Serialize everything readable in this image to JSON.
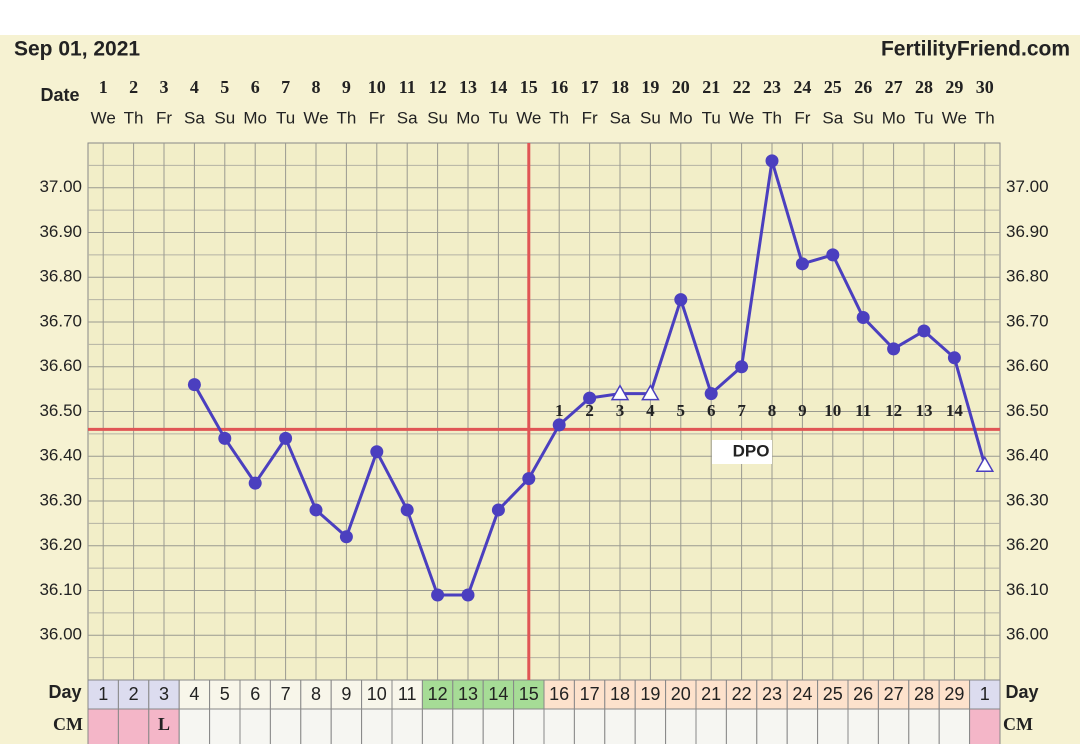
{
  "chart_data": {
    "type": "line",
    "title": "Sep 01, 2021",
    "site": "FertilityFriend.com",
    "x_label": "Date",
    "categories": [
      "1",
      "2",
      "3",
      "4",
      "5",
      "6",
      "7",
      "8",
      "9",
      "10",
      "11",
      "12",
      "13",
      "14",
      "15",
      "16",
      "17",
      "18",
      "19",
      "20",
      "21",
      "22",
      "23",
      "24",
      "25",
      "26",
      "27",
      "28",
      "29",
      "30"
    ],
    "weekdays": [
      "We",
      "Th",
      "Fr",
      "Sa",
      "Su",
      "Mo",
      "Tu",
      "We",
      "Th",
      "Fr",
      "Sa",
      "Su",
      "Mo",
      "Tu",
      "We",
      "Th",
      "Fr",
      "Sa",
      "Su",
      "Mo",
      "Tu",
      "We",
      "Th",
      "Fr",
      "Sa",
      "Su",
      "Mo",
      "Tu",
      "We",
      "Th"
    ],
    "values": [
      null,
      null,
      null,
      36.56,
      36.44,
      36.34,
      36.44,
      36.28,
      36.22,
      36.41,
      36.28,
      36.09,
      36.09,
      36.28,
      36.35,
      36.47,
      36.53,
      36.54,
      36.54,
      36.75,
      36.54,
      36.6,
      37.06,
      36.83,
      36.85,
      36.71,
      36.64,
      36.68,
      36.62,
      36.38
    ],
    "markers": [
      null,
      null,
      null,
      "circle",
      "circle",
      "circle",
      "circle",
      "circle",
      "circle",
      "circle",
      "circle",
      "circle",
      "circle",
      "circle",
      "circle",
      "circle",
      "circle",
      "triangle",
      "triangle",
      "circle",
      "circle",
      "circle",
      "circle",
      "circle",
      "circle",
      "circle",
      "circle",
      "circle",
      "circle",
      "triangle"
    ],
    "color": "#4b3fbf",
    "ylim": [
      35.9,
      37.1
    ],
    "yticks": [
      {
        "value": 36.0,
        "label": "36.00"
      },
      {
        "value": 36.1,
        "label": "36.10"
      },
      {
        "value": 36.2,
        "label": "36.20"
      },
      {
        "value": 36.3,
        "label": "36.30"
      },
      {
        "value": 36.4,
        "label": "36.40"
      },
      {
        "value": 36.5,
        "label": "36.50"
      },
      {
        "value": 36.6,
        "label": "36.60"
      },
      {
        "value": 36.7,
        "label": "36.70"
      },
      {
        "value": 36.8,
        "label": "36.80"
      },
      {
        "value": 36.9,
        "label": "36.90"
      },
      {
        "value": 37.0,
        "label": "37.00"
      }
    ],
    "grid": true,
    "coverline": 36.46,
    "ovulation_day": 15,
    "line_color": "#e05555",
    "dpo": [
      null,
      null,
      null,
      null,
      null,
      null,
      null,
      null,
      null,
      null,
      null,
      null,
      null,
      null,
      null,
      1,
      2,
      3,
      4,
      5,
      6,
      7,
      8,
      9,
      10,
      11,
      12,
      13,
      14,
      null
    ],
    "dpo_label": "DPO",
    "day_label": "Day",
    "cycle_days": [
      1,
      2,
      3,
      4,
      5,
      6,
      7,
      8,
      9,
      10,
      11,
      12,
      13,
      14,
      15,
      16,
      17,
      18,
      19,
      20,
      21,
      22,
      23,
      24,
      25,
      26,
      27,
      28,
      29,
      1
    ],
    "cycle_day_colors": [
      "#dcdcef",
      "#dcdcef",
      "#dcdcef",
      "#f8f6ea",
      "#f8f6ea",
      "#f8f6ea",
      "#f8f6ea",
      "#f8f6ea",
      "#f8f6ea",
      "#f8f6ea",
      "#f8f6ea",
      "#a6dc96",
      "#a6dc96",
      "#a6dc96",
      "#a6dc96",
      "#fde2cc",
      "#fde2cc",
      "#fde2cc",
      "#fde2cc",
      "#fde2cc",
      "#fde2cc",
      "#fde2cc",
      "#fde2cc",
      "#fde2cc",
      "#fde2cc",
      "#fde2cc",
      "#fde2cc",
      "#fde2cc",
      "#fde2cc",
      "#dcdcef"
    ],
    "cm_label": "CM",
    "cm": [
      null,
      null,
      "L",
      null,
      null,
      null,
      null,
      null,
      null,
      null,
      null,
      null,
      null,
      null,
      null,
      null,
      null,
      null,
      null,
      null,
      null,
      null,
      null,
      null,
      null,
      null,
      null,
      null,
      null,
      null
    ],
    "cm_colors": [
      "#f4b6c8",
      "#f4b6c8",
      "#f4b6c8",
      "#f6f6f2",
      "#f6f6f2",
      "#f6f6f2",
      "#f6f6f2",
      "#f6f6f2",
      "#f6f6f2",
      "#f6f6f2",
      "#f6f6f2",
      "#f6f6f2",
      "#f6f6f2",
      "#f6f6f2",
      "#f6f6f2",
      "#f6f6f2",
      "#f6f6f2",
      "#f6f6f2",
      "#f6f6f2",
      "#f6f6f2",
      "#f6f6f2",
      "#f6f6f2",
      "#f6f6f2",
      "#f6f6f2",
      "#f6f6f2",
      "#f6f6f2",
      "#f6f6f2",
      "#f6f6f2",
      "#f6f6f2",
      "#f4b6c8"
    ]
  }
}
